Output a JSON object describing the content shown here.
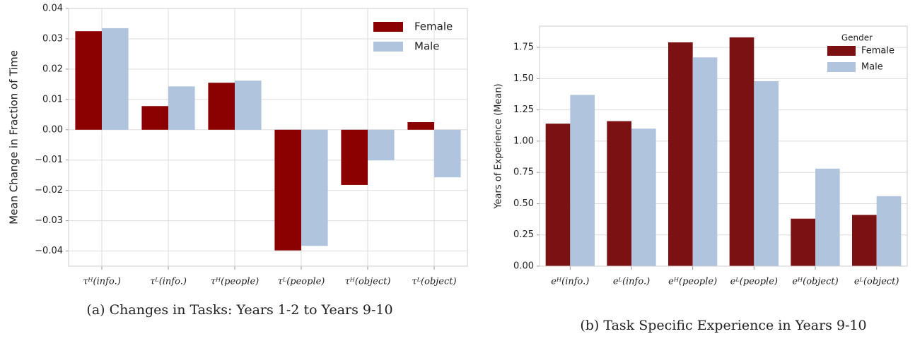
{
  "chart_data": [
    {
      "type": "bar",
      "caption": "(a) Changes in Tasks: Years 1-2 to Years 9-10",
      "ylabel": "Mean Change in Fraction of Time",
      "categories": [
        "τᴴ(info.)",
        "τᴸ(info.)",
        "τᴴ(people)",
        "τᴸ(people)",
        "τᴴ(object)",
        "τᴸ(object)"
      ],
      "series": [
        {
          "name": "Female",
          "color": "#8b0000",
          "values": [
            0.0325,
            0.0078,
            0.0155,
            -0.0398,
            -0.0182,
            0.0025
          ]
        },
        {
          "name": "Male",
          "color": "#b0c4de",
          "values": [
            0.0335,
            0.0143,
            0.0162,
            -0.0383,
            -0.0101,
            -0.0157
          ]
        }
      ],
      "ylim": [
        -0.045,
        0.04
      ],
      "yticks": [
        0.04,
        0.03,
        0.02,
        0.01,
        {
          "value": 0,
          "label": "0.00"
        },
        {
          "value": -0.01,
          "label": "−0.01"
        },
        {
          "value": -0.02,
          "label": "−0.02"
        },
        {
          "value": -0.03,
          "label": "−0.03"
        },
        {
          "value": -0.04,
          "label": "−0.04"
        }
      ],
      "grid": true,
      "legend": "upper right"
    },
    {
      "type": "bar",
      "caption": "(b) Task Specific Experience in Years 9-10",
      "ylabel": "Years of Experience (Mean)",
      "categories": [
        "eᴴ(info.)",
        "eᴸ(info.)",
        "eᴴ(people)",
        "eᴸ(people)",
        "eᴴ(object)",
        "eᴸ(object)"
      ],
      "series": [
        {
          "name": "Female",
          "color": "#7b1113",
          "values": [
            1.14,
            1.16,
            1.79,
            1.83,
            0.38,
            0.41
          ]
        },
        {
          "name": "Male",
          "color": "#b0c4de",
          "values": [
            1.37,
            1.1,
            1.67,
            1.48,
            0.78,
            0.56
          ]
        }
      ],
      "legend_title": "Gender",
      "ylim": [
        0,
        1.92
      ],
      "yticks": [
        {
          "value": 0,
          "label": "0.00"
        },
        0.25,
        {
          "value": 0.5,
          "label": "0.50"
        },
        0.75,
        {
          "value": 1,
          "label": "1.00"
        },
        1.25,
        {
          "value": 1.5,
          "label": "1.50"
        },
        1.75
      ],
      "grid": true,
      "legend": "upper right"
    }
  ]
}
